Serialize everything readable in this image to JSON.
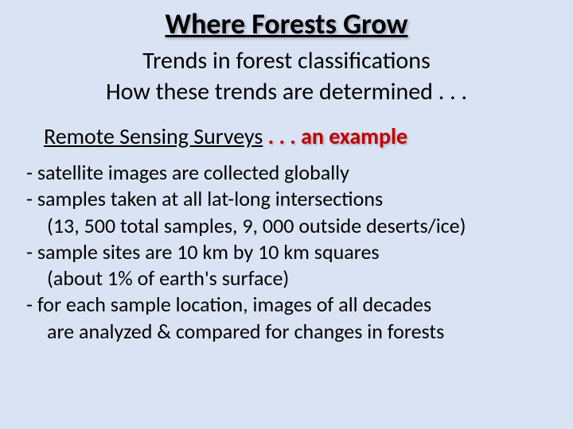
{
  "title": "Where Forests Grow",
  "subtitle1": "Trends in forest classifications",
  "subtitle2": "How these trends are determined . . .",
  "heading": {
    "prefix": "Remote Sensing Surveys",
    "dots": " . . . ",
    "accent": "an example"
  },
  "bullets": {
    "b1": "- satellite images are collected globally",
    "b2": "- samples taken at all lat-long intersections",
    "b2s": "(13, 500 total samples, 9, 000 outside deserts/ice)",
    "b3": "- sample sites are 10 km by 10 km squares",
    "b3s": "(about 1% of earth's surface)",
    "b4": "- for each sample location, images of all decades",
    "b4s": "are analyzed & compared for changes in forests"
  },
  "colors": {
    "background": "#dae3f3",
    "text": "#000000",
    "accent": "#c00000"
  }
}
